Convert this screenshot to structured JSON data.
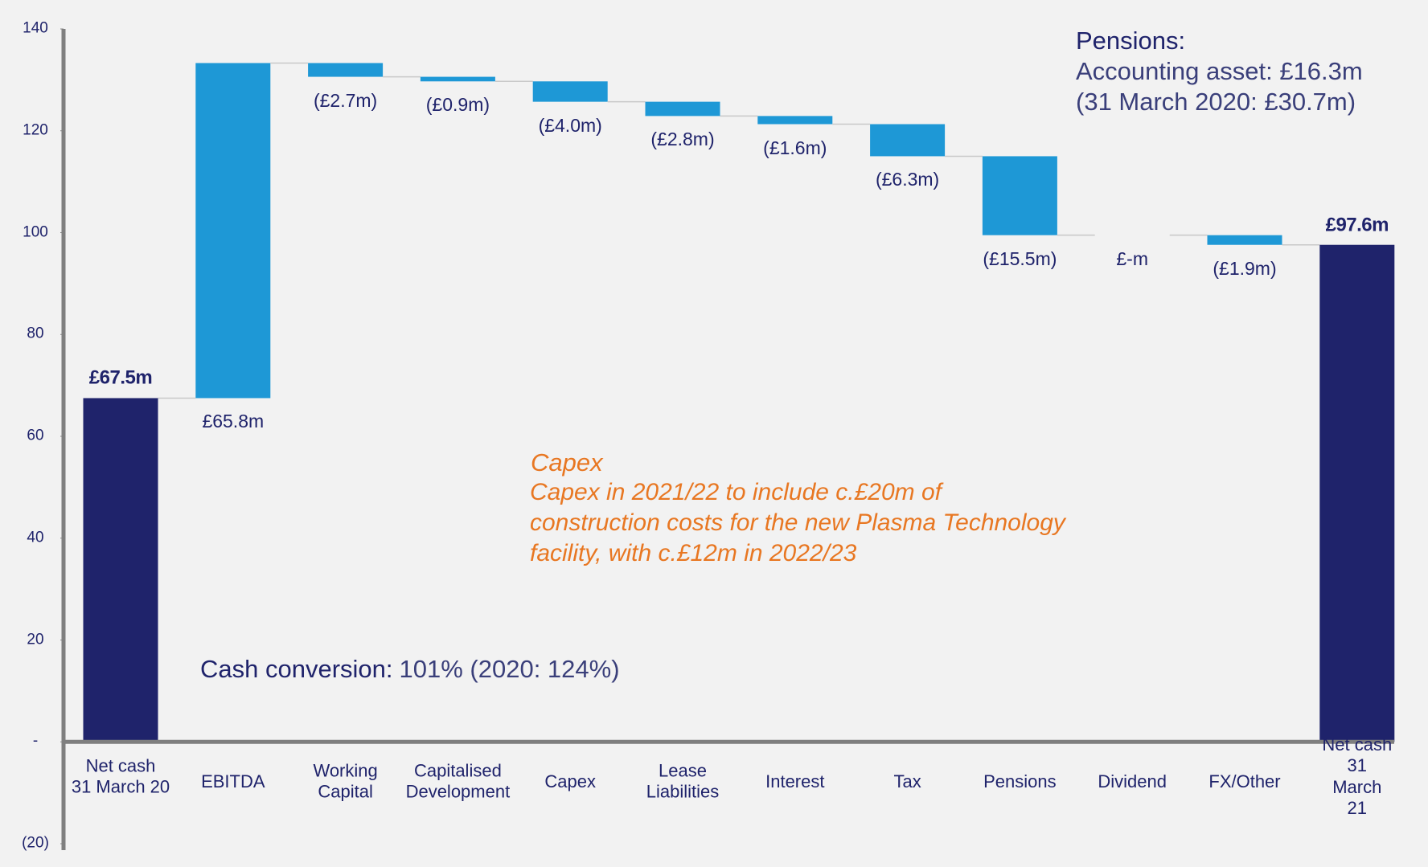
{
  "chart_data": {
    "type": "waterfall",
    "categories": [
      "Net cash\n31 March 20",
      "EBITDA",
      "Working\nCapital",
      "Capitalised\nDevelopment",
      "Capex",
      "Lease\nLiabilities",
      "Interest",
      "Tax",
      "Pensions",
      "Dividend",
      "FX/Other",
      "Net cash\n31 March 21"
    ],
    "values": [
      67.5,
      65.8,
      -2.7,
      -0.9,
      -4.0,
      -2.8,
      -1.6,
      -6.3,
      -15.5,
      0,
      -1.9,
      97.6
    ],
    "value_labels": [
      "£67.5m",
      "£65.8m",
      "(£2.7m)",
      "(£0.9m)",
      "(£4.0m)",
      "(£2.8m)",
      "(£1.6m)",
      "(£6.3m)",
      "(£15.5m)",
      "£-m",
      "(£1.9m)",
      "£97.6m"
    ],
    "total_color": "#1f236b",
    "change_color": "#1e98d6",
    "ylim": [
      -20,
      140
    ],
    "yticks": [
      {
        "value": -20,
        "label": "(20)"
      },
      {
        "value": 0,
        "label": "-"
      },
      20,
      40,
      60,
      80,
      100,
      120,
      140
    ],
    "annotations": {
      "pensions": {
        "title": "Pensions:",
        "lines": [
          "Accounting asset: £16.3m",
          "(31 March 2020: £30.7m)"
        ]
      },
      "capex": {
        "title": "Capex",
        "lines": [
          "Capex in 2021/22 to include c.£20m of",
          "construction costs for the new Plasma Technology",
          "facility, with c.£12m in 2022/23"
        ]
      },
      "cash_conversion": {
        "label": "Cash conversion:",
        "value": "101% (2020: 124%)"
      }
    }
  }
}
